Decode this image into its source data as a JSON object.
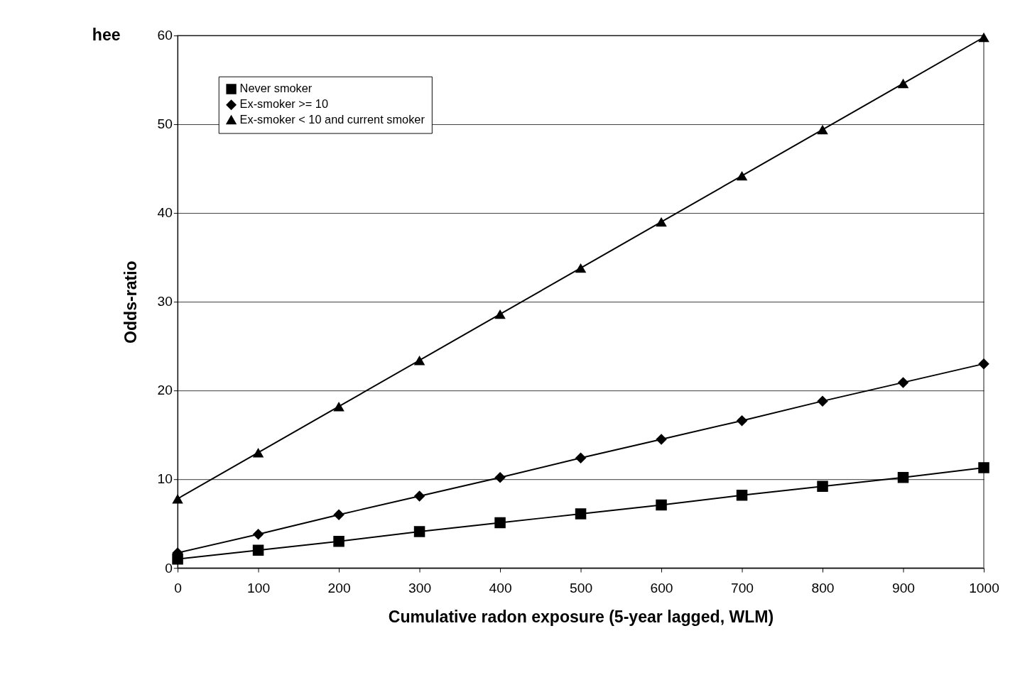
{
  "chart_data": {
    "type": "line",
    "xlabel": "Cumulative radon exposure (5-year lagged, WLM)",
    "ylabel": "Odds-ratio",
    "annotations": [
      "hee"
    ],
    "x": [
      0,
      100,
      200,
      300,
      400,
      500,
      600,
      700,
      800,
      900,
      1000
    ],
    "series": [
      {
        "name": "Never smoker",
        "color": "#000000",
        "marker": "square",
        "values": [
          1.0,
          2.0,
          3.0,
          4.1,
          5.1,
          6.1,
          7.1,
          8.2,
          9.2,
          10.2,
          11.3
        ]
      },
      {
        "name": "Ex-smoker >= 10",
        "color": "#000000",
        "marker": "diamond",
        "values": [
          1.7,
          3.8,
          6.0,
          8.1,
          10.2,
          12.4,
          14.5,
          16.6,
          18.8,
          20.9,
          23.0
        ]
      },
      {
        "name": "Ex-smoker < 10 and current smoker",
        "color": "#000000",
        "marker": "triangle",
        "values": [
          7.8,
          13.0,
          18.2,
          23.4,
          28.6,
          33.8,
          39.0,
          44.2,
          49.4,
          54.6,
          59.8
        ]
      }
    ],
    "xlim": [
      0,
      1000
    ],
    "xticks": [
      0,
      100,
      200,
      300,
      400,
      500,
      600,
      700,
      800,
      900,
      1000
    ],
    "ylim": [
      0,
      60
    ],
    "yticks": [
      0,
      10,
      20,
      30,
      40,
      50,
      60
    ],
    "grid": "y",
    "legend": "top left",
    "line_style": "solid"
  }
}
